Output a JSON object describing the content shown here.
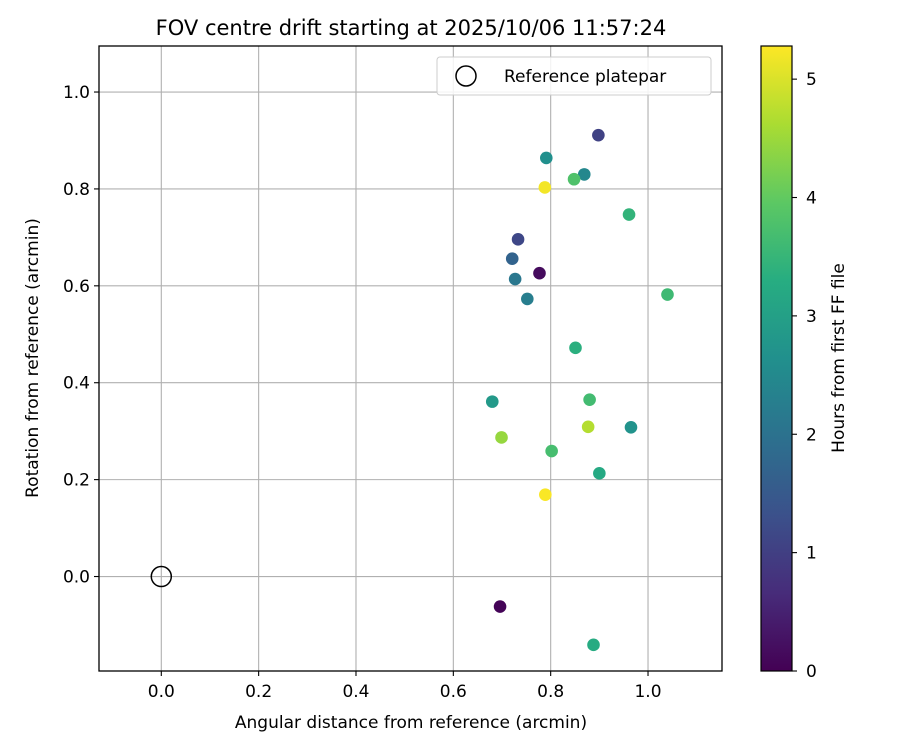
{
  "chart_data": {
    "type": "scatter",
    "title": "FOV centre drift starting at 2025/10/06 11:57:24",
    "xlabel": "Angular distance from reference (arcmin)",
    "ylabel": "Rotation from reference (arcmin)",
    "xlim": [
      -0.128,
      1.152
    ],
    "ylim": [
      -0.195,
      1.095
    ],
    "xticks": [
      0.0,
      0.2,
      0.4,
      0.6,
      0.8,
      1.0
    ],
    "xtick_labels": [
      "0.0",
      "0.2",
      "0.4",
      "0.6",
      "0.8",
      "1.0"
    ],
    "yticks": [
      0.0,
      0.2,
      0.4,
      0.6,
      0.8,
      1.0
    ],
    "ytick_labels": [
      "0.0",
      "0.2",
      "0.4",
      "0.6",
      "0.8",
      "1.0"
    ],
    "grid": true,
    "legend": {
      "position": "top-right",
      "entries": [
        "Reference platepar"
      ]
    },
    "reference_point": {
      "label": "Reference platepar",
      "x": 0.0,
      "y": 0.0
    },
    "colorbar": {
      "label": "Hours from first FF file",
      "min": 0,
      "max": 5.28,
      "ticks": [
        0,
        1,
        2,
        3,
        4,
        5
      ],
      "tick_labels": [
        "0",
        "1",
        "2",
        "3",
        "4",
        "5"
      ],
      "colormap": "viridis"
    },
    "points": [
      {
        "x": 0.696,
        "y": -0.062,
        "hours": 0.05
      },
      {
        "x": 0.777,
        "y": 0.626,
        "hours": 0.15
      },
      {
        "x": 0.898,
        "y": 0.911,
        "hours": 1.05
      },
      {
        "x": 0.733,
        "y": 0.696,
        "hours": 1.15
      },
      {
        "x": 0.721,
        "y": 0.656,
        "hours": 1.7
      },
      {
        "x": 0.727,
        "y": 0.614,
        "hours": 2.1
      },
      {
        "x": 0.752,
        "y": 0.573,
        "hours": 2.25
      },
      {
        "x": 0.869,
        "y": 0.83,
        "hours": 2.45
      },
      {
        "x": 0.791,
        "y": 0.864,
        "hours": 2.65
      },
      {
        "x": 0.965,
        "y": 0.308,
        "hours": 2.7
      },
      {
        "x": 0.68,
        "y": 0.361,
        "hours": 2.85
      },
      {
        "x": 0.9,
        "y": 0.213,
        "hours": 3.2
      },
      {
        "x": 0.888,
        "y": -0.141,
        "hours": 3.25
      },
      {
        "x": 0.851,
        "y": 0.472,
        "hours": 3.35
      },
      {
        "x": 0.961,
        "y": 0.747,
        "hours": 3.45
      },
      {
        "x": 1.04,
        "y": 0.582,
        "hours": 3.6
      },
      {
        "x": 0.88,
        "y": 0.365,
        "hours": 3.65
      },
      {
        "x": 0.802,
        "y": 0.259,
        "hours": 3.7
      },
      {
        "x": 0.848,
        "y": 0.82,
        "hours": 3.8
      },
      {
        "x": 0.699,
        "y": 0.287,
        "hours": 4.45
      },
      {
        "x": 0.877,
        "y": 0.309,
        "hours": 4.7
      },
      {
        "x": 0.788,
        "y": 0.803,
        "hours": 5.2
      },
      {
        "x": 0.789,
        "y": 0.169,
        "hours": 5.25
      }
    ]
  }
}
